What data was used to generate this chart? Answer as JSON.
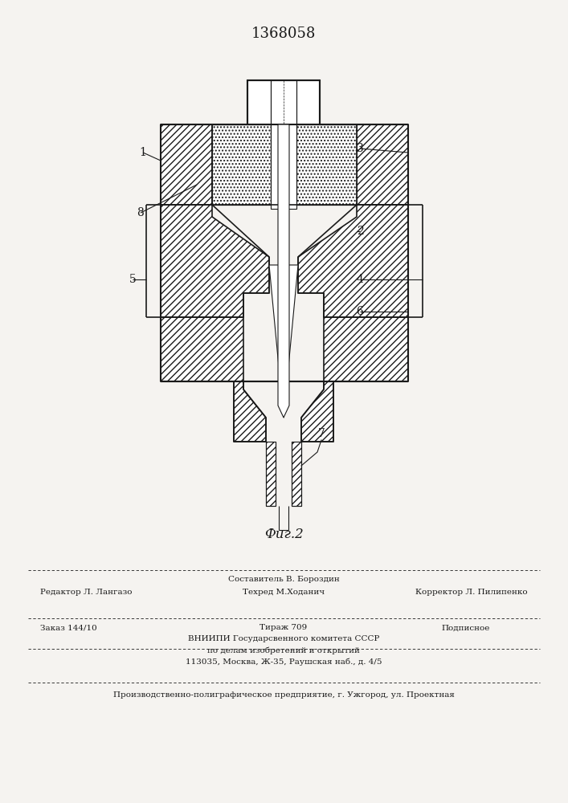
{
  "patent_number": "1368058",
  "fig_label": "Фиг.2",
  "background_color": "#f5f3f0",
  "line_color": "#1a1a1a",
  "footer_line0_center": "Составитель В. Бороздин",
  "footer_line1_left": "Редактор Л. Лангазо",
  "footer_line1_center": "Техред М.Ходанич",
  "footer_line1_right": "Корректор Л. Пилипенко",
  "footer_order": "Заказ 144/10",
  "footer_copies": "Тираж 709",
  "footer_subscribed": "Подписное",
  "footer_vnipi": "ВНИИПИ Государсвенного комитета СССР",
  "footer_affairs": "по делам изобретений и открытий",
  "footer_address": "113035, Москва, Ж-35, Раушская наб., д. 4/5",
  "footer_enterprise": "Производственно-полиграфическое предприятие, г. Ужгород, ул. Проектная"
}
